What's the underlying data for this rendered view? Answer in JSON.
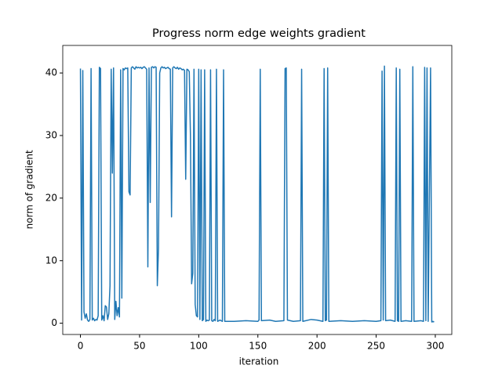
{
  "chart_data": {
    "type": "line",
    "title": "Progress norm edge weights gradient",
    "xlabel": "iteration",
    "ylabel": "norm of gradient",
    "x": [
      0,
      1,
      2,
      3,
      4,
      5,
      6,
      7,
      8,
      9,
      10,
      11,
      12,
      13,
      14,
      15,
      16,
      17,
      18,
      19,
      20,
      21,
      22,
      23,
      24,
      25,
      26,
      27,
      28,
      29,
      30,
      31,
      32,
      33,
      34,
      35,
      36,
      37,
      38,
      39,
      40,
      41,
      42,
      43,
      44,
      45,
      46,
      47,
      48,
      49,
      50,
      51,
      52,
      53,
      54,
      55,
      56,
      57,
      58,
      59,
      60,
      61,
      62,
      63,
      64,
      65,
      66,
      67,
      68,
      69,
      70,
      71,
      72,
      73,
      74,
      75,
      76,
      77,
      78,
      79,
      80,
      81,
      82,
      83,
      84,
      85,
      86,
      87,
      88,
      89,
      90,
      91,
      92,
      93,
      94,
      95,
      96,
      97,
      98,
      99,
      100,
      101,
      102,
      103,
      104,
      105,
      106,
      107,
      108,
      109,
      110,
      111,
      112,
      113,
      114,
      115,
      116,
      117,
      118,
      119,
      120,
      121,
      122,
      130,
      140,
      150,
      151,
      152,
      153,
      160,
      165,
      172,
      173,
      174,
      175,
      180,
      186,
      187,
      188,
      195,
      200,
      205,
      206,
      207,
      208,
      209,
      210,
      220,
      230,
      240,
      250,
      254,
      255,
      256,
      257,
      258,
      262,
      266,
      267,
      268,
      269,
      270,
      271,
      275,
      280,
      281,
      282,
      288,
      290,
      291,
      292,
      293,
      294,
      296,
      297,
      298,
      299
    ],
    "series": [
      {
        "name": "norm",
        "color": "#1f77b4",
        "values": [
          40.7,
          0.5,
          40.4,
          1.8,
          0.8,
          1.5,
          0.5,
          0.3,
          0.6,
          40.7,
          0.5,
          0.8,
          0.4,
          0.6,
          0.5,
          1.2,
          40.9,
          40.7,
          0.5,
          1.2,
          0.4,
          2.8,
          2.6,
          0.6,
          1.5,
          6,
          40.6,
          24,
          40.8,
          0.6,
          3.5,
          1.2,
          2.5,
          1,
          40.5,
          4,
          40.7,
          40.5,
          40.8,
          40.7,
          40.8,
          21,
          20.5,
          40.8,
          41,
          40.8,
          40.6,
          41,
          40.8,
          40.9,
          40.8,
          40.9,
          40.7,
          40.9,
          41,
          40.8,
          40.6,
          9,
          40.8,
          19.3,
          40.9,
          41,
          40.8,
          41,
          40.9,
          6,
          12,
          40,
          40.8,
          41,
          40.8,
          40.9,
          40.7,
          40.8,
          40.9,
          40.7,
          40.6,
          17,
          40.8,
          41,
          40.8,
          40.7,
          40.9,
          40.6,
          40.8,
          40.7,
          40.5,
          40.6,
          40.4,
          23,
          40.6,
          40.5,
          40.2,
          30,
          6.3,
          8,
          40.6,
          3,
          1.2,
          1,
          40.6,
          0.6,
          40.5,
          0.4,
          0.6,
          40.5,
          0.3,
          0.5,
          0.4,
          0.5,
          40.5,
          0.4,
          0.3,
          0.6,
          0.4,
          40.6,
          0.3,
          0.4,
          0.5,
          0.4,
          0.3,
          40.5,
          0.3,
          0.3,
          0.4,
          0.3,
          0.5,
          40.6,
          0.4,
          0.5,
          0.3,
          0.4,
          40.7,
          40.8,
          0.5,
          0.3,
          0.4,
          40.6,
          0.3,
          0.6,
          0.5,
          0.3,
          40.7,
          0.4,
          0.5,
          40.8,
          0.3,
          0.4,
          0.3,
          0.4,
          0.3,
          0.4,
          40.3,
          0.5,
          41.1,
          0.4,
          0.5,
          0.3,
          40.8,
          0.4,
          0.3,
          40.6,
          0.3,
          0.4,
          0.3,
          41,
          0.3,
          0.4,
          0.3,
          40.9,
          0.4,
          40.8,
          0.3,
          40.8,
          0.2,
          0.3,
          0.2
        ]
      }
    ],
    "xlim": [
      -14.95,
      313.95
    ],
    "ylim": [
      -1.8,
      44.4
    ],
    "xticks": [
      0,
      50,
      100,
      150,
      200,
      250,
      300
    ],
    "yticks": [
      0,
      10,
      20,
      30,
      40
    ],
    "grid": false
  }
}
